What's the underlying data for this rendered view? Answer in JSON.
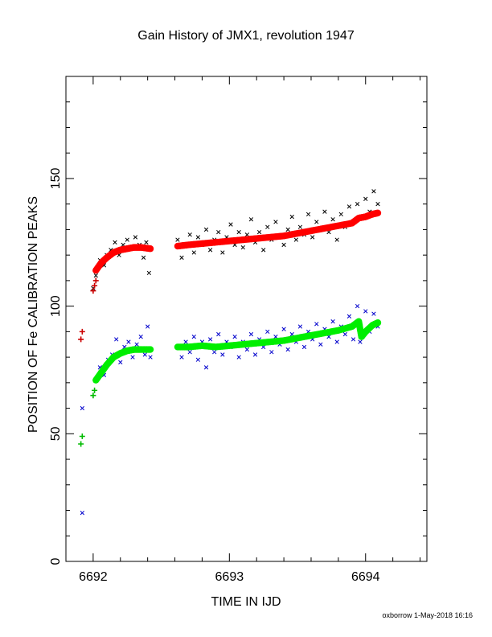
{
  "chart_data": {
    "type": "scatter",
    "title": "Gain History of JMX1, revolution 1947",
    "xlabel": "TIME IN IJD",
    "ylabel": "POSITION OF Fe CALIBRATION PEAKS",
    "xlim": [
      6691.8,
      6694.45
    ],
    "ylim": [
      0,
      190
    ],
    "x_ticks": [
      6692,
      6693,
      6694
    ],
    "y_ticks": [
      0,
      50,
      100,
      150
    ],
    "grid": false,
    "series": [
      {
        "marker": "x",
        "color": "#000000",
        "points": [
          [
            6692.0,
            107
          ],
          [
            6692.02,
            112
          ],
          [
            6692.05,
            118
          ],
          [
            6692.08,
            116
          ],
          [
            6692.1,
            120
          ],
          [
            6692.13,
            122
          ],
          [
            6692.16,
            125
          ],
          [
            6692.19,
            120
          ],
          [
            6692.22,
            124
          ],
          [
            6692.25,
            126
          ],
          [
            6692.28,
            123
          ],
          [
            6692.31,
            127
          ],
          [
            6692.34,
            124
          ],
          [
            6692.37,
            119
          ],
          [
            6692.39,
            125
          ],
          [
            6692.41,
            113
          ],
          [
            6692.62,
            126
          ],
          [
            6692.65,
            119
          ],
          [
            6692.68,
            124
          ],
          [
            6692.71,
            128
          ],
          [
            6692.74,
            121
          ],
          [
            6692.77,
            127
          ],
          [
            6692.8,
            124
          ],
          [
            6692.83,
            130
          ],
          [
            6692.86,
            122
          ],
          [
            6692.89,
            126
          ],
          [
            6692.92,
            129
          ],
          [
            6692.95,
            121
          ],
          [
            6692.98,
            127
          ],
          [
            6693.01,
            132
          ],
          [
            6693.04,
            124
          ],
          [
            6693.07,
            129
          ],
          [
            6693.1,
            123
          ],
          [
            6693.13,
            128
          ],
          [
            6693.16,
            134
          ],
          [
            6693.19,
            125
          ],
          [
            6693.22,
            129
          ],
          [
            6693.25,
            122
          ],
          [
            6693.28,
            131
          ],
          [
            6693.31,
            126
          ],
          [
            6693.34,
            133
          ],
          [
            6693.37,
            127
          ],
          [
            6693.4,
            124
          ],
          [
            6693.43,
            130
          ],
          [
            6693.46,
            135
          ],
          [
            6693.49,
            126
          ],
          [
            6693.52,
            131
          ],
          [
            6693.55,
            128
          ],
          [
            6693.58,
            136
          ],
          [
            6693.61,
            127
          ],
          [
            6693.64,
            133
          ],
          [
            6693.67,
            130
          ],
          [
            6693.7,
            137
          ],
          [
            6693.73,
            129
          ],
          [
            6693.76,
            134
          ],
          [
            6693.79,
            126
          ],
          [
            6693.82,
            136
          ],
          [
            6693.85,
            131
          ],
          [
            6693.88,
            139
          ],
          [
            6693.91,
            133
          ],
          [
            6693.94,
            140
          ],
          [
            6693.97,
            135
          ],
          [
            6694.0,
            142
          ],
          [
            6694.03,
            137
          ],
          [
            6694.06,
            145
          ],
          [
            6694.09,
            140
          ]
        ]
      },
      {
        "marker": "+",
        "color": "#cc0000",
        "points": [
          [
            6691.91,
            87
          ],
          [
            6691.92,
            90
          ],
          [
            6692.0,
            106
          ],
          [
            6692.01,
            108
          ],
          [
            6692.02,
            110
          ]
        ]
      },
      {
        "marker": "dot",
        "color": "#ff0000",
        "points": [
          [
            6692.02,
            114
          ],
          [
            6692.06,
            117
          ],
          [
            6692.1,
            119
          ],
          [
            6692.15,
            121
          ],
          [
            6692.2,
            122
          ],
          [
            6692.25,
            122.5
          ],
          [
            6692.3,
            123
          ],
          [
            6692.35,
            123
          ],
          [
            6692.42,
            122.5
          ],
          [
            6692.62,
            123.5
          ],
          [
            6692.7,
            124
          ],
          [
            6692.8,
            124.5
          ],
          [
            6692.9,
            125
          ],
          [
            6693.0,
            125.5
          ],
          [
            6693.1,
            126
          ],
          [
            6693.2,
            126.5
          ],
          [
            6693.3,
            127
          ],
          [
            6693.4,
            127.5
          ],
          [
            6693.5,
            128.5
          ],
          [
            6693.6,
            129.5
          ],
          [
            6693.7,
            130.5
          ],
          [
            6693.8,
            131.5
          ],
          [
            6693.9,
            132.5
          ],
          [
            6693.95,
            134.5
          ],
          [
            6694.0,
            135
          ],
          [
            6694.05,
            136
          ],
          [
            6694.09,
            136.5
          ]
        ]
      },
      {
        "marker": "x",
        "color": "#0000cc",
        "points": [
          [
            6691.92,
            60
          ],
          [
            6691.92,
            19
          ],
          [
            6692.02,
            71
          ],
          [
            6692.05,
            76
          ],
          [
            6692.08,
            73
          ],
          [
            6692.11,
            79
          ],
          [
            6692.14,
            81
          ],
          [
            6692.17,
            87
          ],
          [
            6692.2,
            78
          ],
          [
            6692.23,
            84
          ],
          [
            6692.26,
            86
          ],
          [
            6692.29,
            80
          ],
          [
            6692.32,
            85
          ],
          [
            6692.35,
            88
          ],
          [
            6692.38,
            81
          ],
          [
            6692.4,
            92
          ],
          [
            6692.42,
            80
          ],
          [
            6692.62,
            84
          ],
          [
            6692.65,
            80
          ],
          [
            6692.68,
            86
          ],
          [
            6692.71,
            82
          ],
          [
            6692.74,
            88
          ],
          [
            6692.77,
            79
          ],
          [
            6692.8,
            86
          ],
          [
            6692.83,
            76
          ],
          [
            6692.86,
            87
          ],
          [
            6692.89,
            82
          ],
          [
            6692.92,
            89
          ],
          [
            6692.95,
            81
          ],
          [
            6692.98,
            86
          ],
          [
            6693.01,
            84
          ],
          [
            6693.04,
            88
          ],
          [
            6693.07,
            80
          ],
          [
            6693.1,
            86
          ],
          [
            6693.13,
            83
          ],
          [
            6693.16,
            89
          ],
          [
            6693.19,
            81
          ],
          [
            6693.22,
            87
          ],
          [
            6693.25,
            84
          ],
          [
            6693.28,
            90
          ],
          [
            6693.31,
            82
          ],
          [
            6693.34,
            88
          ],
          [
            6693.37,
            85
          ],
          [
            6693.4,
            91
          ],
          [
            6693.43,
            83
          ],
          [
            6693.46,
            89
          ],
          [
            6693.49,
            86
          ],
          [
            6693.52,
            92
          ],
          [
            6693.55,
            84
          ],
          [
            6693.58,
            90
          ],
          [
            6693.61,
            87
          ],
          [
            6693.64,
            93
          ],
          [
            6693.67,
            85
          ],
          [
            6693.7,
            91
          ],
          [
            6693.73,
            88
          ],
          [
            6693.76,
            94
          ],
          [
            6693.79,
            86
          ],
          [
            6693.82,
            92
          ],
          [
            6693.85,
            89
          ],
          [
            6693.88,
            96
          ],
          [
            6693.91,
            87
          ],
          [
            6693.94,
            100
          ],
          [
            6693.96,
            86
          ],
          [
            6694.0,
            98
          ],
          [
            6694.03,
            90
          ],
          [
            6694.06,
            97
          ],
          [
            6694.09,
            92
          ]
        ]
      },
      {
        "marker": "+",
        "color": "#00bb00",
        "points": [
          [
            6691.91,
            46
          ],
          [
            6691.92,
            49
          ],
          [
            6692.0,
            65
          ],
          [
            6692.01,
            67
          ]
        ]
      },
      {
        "marker": "dot",
        "color": "#00ee00",
        "points": [
          [
            6692.02,
            71
          ],
          [
            6692.06,
            74
          ],
          [
            6692.1,
            77
          ],
          [
            6692.15,
            80
          ],
          [
            6692.2,
            81.5
          ],
          [
            6692.25,
            82.5
          ],
          [
            6692.3,
            83
          ],
          [
            6692.35,
            83
          ],
          [
            6692.42,
            83
          ],
          [
            6692.62,
            84
          ],
          [
            6692.7,
            84
          ],
          [
            6692.8,
            84.5
          ],
          [
            6692.9,
            84
          ],
          [
            6693.0,
            84.5
          ],
          [
            6693.1,
            85
          ],
          [
            6693.2,
            85.5
          ],
          [
            6693.3,
            86
          ],
          [
            6693.4,
            86.5
          ],
          [
            6693.5,
            87.5
          ],
          [
            6693.6,
            88.5
          ],
          [
            6693.7,
            89.5
          ],
          [
            6693.8,
            90.5
          ],
          [
            6693.9,
            92
          ],
          [
            6693.95,
            94
          ],
          [
            6693.97,
            88
          ],
          [
            6694.0,
            90
          ],
          [
            6694.05,
            92.5
          ],
          [
            6694.09,
            93.5
          ]
        ]
      }
    ]
  },
  "footer": {
    "credit": "oxborrow  1-May-2018 16:16"
  }
}
